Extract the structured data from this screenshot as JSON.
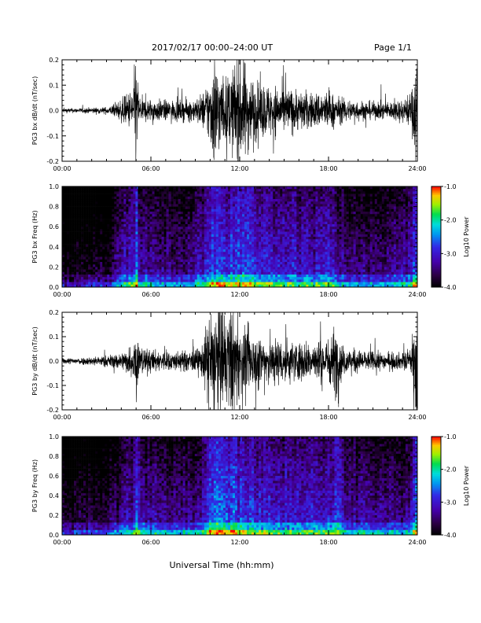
{
  "header": {
    "title": "2017/02/17  00:00–24:00 UT",
    "page": "Page 1/1"
  },
  "xlabel": "Universal Time (hh:mm)",
  "chart_data": [
    {
      "type": "line",
      "ylabel": "PG3 bx dB/dt (nT/sec)",
      "xlim": [
        0,
        24
      ],
      "ylim": [
        -0.2,
        0.2
      ],
      "x_ticks": [
        "00:00",
        "06:00",
        "12:00",
        "18:00",
        "24:00"
      ],
      "y_ticks": [
        "0.2",
        "0.1",
        "0.0",
        "-0.1",
        "-0.2"
      ],
      "envelope": {
        "x": [
          0,
          1,
          2,
          3,
          3.5,
          4,
          4.5,
          4.8,
          5,
          5.2,
          5.5,
          6,
          7,
          8,
          9,
          9.5,
          10,
          10.3,
          10.8,
          11,
          11.5,
          12,
          13,
          14,
          15,
          16,
          17,
          18,
          18.5,
          19,
          20,
          21,
          22,
          23,
          23.6,
          23.9,
          24
        ],
        "amplitude": [
          0.008,
          0.008,
          0.01,
          0.012,
          0.02,
          0.04,
          0.06,
          0.09,
          0.2,
          0.05,
          0.04,
          0.04,
          0.035,
          0.035,
          0.04,
          0.06,
          0.12,
          0.2,
          0.12,
          0.11,
          0.14,
          0.2,
          0.1,
          0.09,
          0.08,
          0.07,
          0.06,
          0.07,
          0.05,
          0.04,
          0.035,
          0.03,
          0.03,
          0.04,
          0.06,
          0.2,
          0.2
        ]
      }
    },
    {
      "type": "heatmap",
      "ylabel": "PG3 bx Freq (Hz)",
      "xlim": [
        0,
        24
      ],
      "ylim": [
        0,
        1
      ],
      "x_ticks": [
        "00:00",
        "06:00",
        "12:00",
        "18:00",
        "24:00"
      ],
      "y_ticks": [
        "1.0",
        "0.8",
        "0.6",
        "0.4",
        "0.2",
        "0.0"
      ],
      "colorbar": {
        "label": "Log10 Power",
        "range": [
          -4.0,
          -1.0
        ],
        "ticks": [
          "-1.0",
          "-2.0",
          "-3.0",
          "-4.0"
        ]
      }
    },
    {
      "type": "line",
      "ylabel": "PG3 by dB/dt (nT/sec)",
      "xlim": [
        0,
        24
      ],
      "ylim": [
        -0.2,
        0.2
      ],
      "x_ticks": [
        "00:00",
        "06:00",
        "12:00",
        "18:00",
        "24:00"
      ],
      "y_ticks": [
        "0.2",
        "0.1",
        "0.0",
        "-0.1",
        "-0.2"
      ],
      "envelope": {
        "x": [
          0,
          1,
          2,
          3,
          4,
          4.8,
          5,
          5.3,
          6,
          7,
          8,
          9,
          9.5,
          10,
          10.3,
          10.8,
          11,
          11.5,
          12,
          13,
          14,
          15,
          16,
          17,
          18,
          18.5,
          19,
          20,
          21,
          22,
          23,
          23.6,
          23.9,
          24
        ],
        "amplitude": [
          0.01,
          0.012,
          0.015,
          0.02,
          0.03,
          0.06,
          0.13,
          0.05,
          0.04,
          0.035,
          0.035,
          0.04,
          0.06,
          0.2,
          0.2,
          0.2,
          0.15,
          0.2,
          0.12,
          0.1,
          0.09,
          0.08,
          0.07,
          0.07,
          0.08,
          0.13,
          0.05,
          0.04,
          0.035,
          0.03,
          0.03,
          0.05,
          0.2,
          0.2
        ]
      }
    },
    {
      "type": "heatmap",
      "ylabel": "PG3 by Freq (Hz)",
      "xlim": [
        0,
        24
      ],
      "ylim": [
        0,
        1
      ],
      "x_ticks": [
        "00:00",
        "06:00",
        "12:00",
        "18:00",
        "24:00"
      ],
      "y_ticks": [
        "1.0",
        "0.8",
        "0.6",
        "0.4",
        "0.2",
        "0.0"
      ],
      "colorbar": {
        "label": "Log10 Power",
        "range": [
          -4.0,
          -1.0
        ],
        "ticks": [
          "-1.0",
          "-2.0",
          "-3.0",
          "-4.0"
        ]
      }
    }
  ]
}
